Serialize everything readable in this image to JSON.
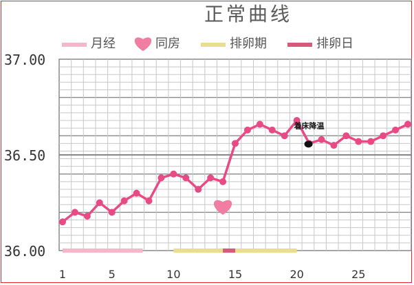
{
  "chart_data": {
    "type": "line",
    "title": "正常曲线",
    "legend": [
      {
        "label": "月经",
        "symbol": "bar",
        "color": "#f5b8cb"
      },
      {
        "label": "同房",
        "symbol": "heart",
        "color": "#f07ea2"
      },
      {
        "label": "排卵期",
        "symbol": "bar",
        "color": "#eadd90"
      },
      {
        "label": "排卵日",
        "symbol": "bar",
        "color": "#d85a7a"
      }
    ],
    "legend_placement": "top",
    "x_ticks": [
      1,
      5,
      10,
      15,
      20,
      25
    ],
    "x_range": [
      1,
      29
    ],
    "y_ticks": [
      "37.00",
      "36.50",
      "36.00"
    ],
    "ylim": [
      36.0,
      37.0
    ],
    "grid": true,
    "series": [
      {
        "color": "#e84a86",
        "x": [
          1,
          2,
          3,
          4,
          5,
          6,
          7,
          8,
          9,
          10,
          11,
          12,
          13,
          14,
          15,
          16,
          17,
          18,
          19,
          20,
          21,
          22,
          23,
          24,
          25,
          26,
          27,
          28,
          29
        ],
        "values": [
          36.15,
          36.2,
          36.18,
          36.25,
          36.2,
          36.26,
          36.3,
          36.26,
          36.38,
          36.4,
          36.38,
          36.32,
          36.38,
          36.36,
          36.56,
          36.63,
          36.66,
          36.63,
          36.6,
          36.68,
          36.56,
          36.58,
          36.55,
          36.6,
          36.57,
          36.57,
          36.6,
          36.63,
          36.66
        ]
      }
    ],
    "intercourse_days": [
      {
        "x": 14,
        "y": 36.23
      }
    ],
    "periods": [
      {
        "legend": "月经",
        "from": 1,
        "to": 7.5
      },
      {
        "legend": "排卵期",
        "from": 10,
        "to": 20
      },
      {
        "legend": "排卵日",
        "from": 14,
        "to": 15
      }
    ],
    "annotations": [
      {
        "text": "着床降温",
        "x": 21,
        "y": 36.56
      }
    ]
  },
  "colors": {
    "line": "#e84a86",
    "grid_minor": "#c8c8c8",
    "grid_major": "#888888",
    "frame": "#e8242e"
  }
}
